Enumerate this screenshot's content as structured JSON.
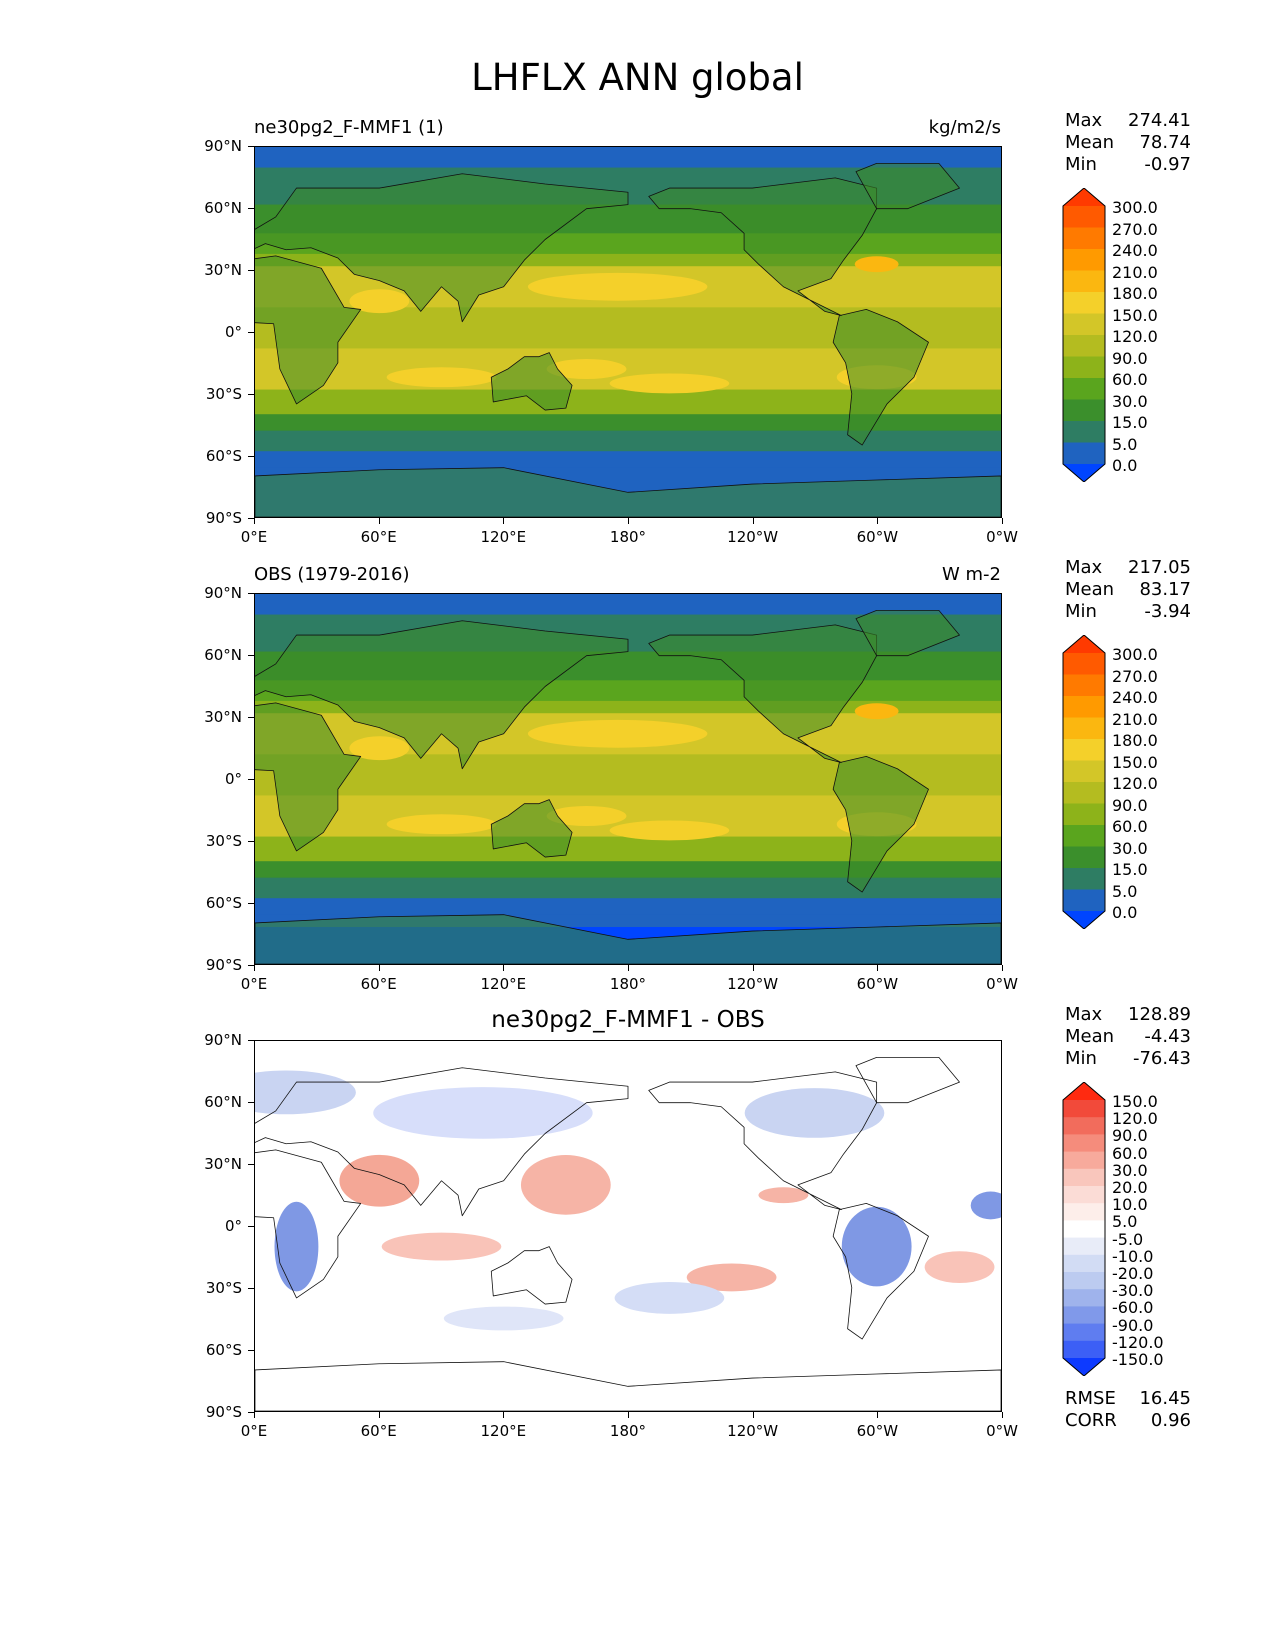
{
  "title": "LHFLX ANN global",
  "axes": {
    "lat_labels": [
      "90°N",
      "60°N",
      "30°N",
      "0°",
      "30°S",
      "60°S",
      "90°S"
    ],
    "lon_labels": [
      "0°E",
      "60°E",
      "120°E",
      "180°",
      "120°W",
      "60°W",
      "0°W"
    ]
  },
  "panels": [
    {
      "title_left": "ne30pg2_F-MMF1 (1)",
      "title_right": "kg/m2/s",
      "title_center": "",
      "stats": [
        {
          "label": "Max",
          "value": "274.41"
        },
        {
          "label": "Mean",
          "value": "78.74"
        },
        {
          "label": "Min",
          "value": "-0.97"
        }
      ],
      "colorbar_labels": [
        "300.0",
        "270.0",
        "240.0",
        "210.0",
        "180.0",
        "150.0",
        "120.0",
        "90.0",
        "60.0",
        "30.0",
        "15.0",
        "5.0",
        "0.0"
      ],
      "colorbar_colors": [
        "#ff3a00",
        "#ff5a00",
        "#ff7a00",
        "#ff9a00",
        "#fbb710",
        "#f4d02a",
        "#d3c628",
        "#b4bc20",
        "#8db31a",
        "#5aa51e",
        "#3b8f2c",
        "#2e7d63",
        "#1f63c0",
        "#0045ff"
      ],
      "extra_stats": []
    },
    {
      "title_left": "OBS (1979-2016)",
      "title_right": "W m-2",
      "title_center": "",
      "stats": [
        {
          "label": "Max",
          "value": "217.05"
        },
        {
          "label": "Mean",
          "value": "83.17"
        },
        {
          "label": "Min",
          "value": "-3.94"
        }
      ],
      "colorbar_labels": [
        "300.0",
        "270.0",
        "240.0",
        "210.0",
        "180.0",
        "150.0",
        "120.0",
        "90.0",
        "60.0",
        "30.0",
        "15.0",
        "5.0",
        "0.0"
      ],
      "colorbar_colors": [
        "#ff3a00",
        "#ff5a00",
        "#ff7a00",
        "#ff9a00",
        "#fbb710",
        "#f4d02a",
        "#d3c628",
        "#b4bc20",
        "#8db31a",
        "#5aa51e",
        "#3b8f2c",
        "#2e7d63",
        "#1f63c0",
        "#0045ff"
      ],
      "extra_stats": []
    },
    {
      "title_left": "",
      "title_right": "",
      "title_center": "ne30pg2_F-MMF1 - OBS",
      "stats": [
        {
          "label": "Max",
          "value": "128.89"
        },
        {
          "label": "Mean",
          "value": "-4.43"
        },
        {
          "label": "Min",
          "value": "-76.43"
        }
      ],
      "colorbar_labels": [
        "150.0",
        "120.0",
        "90.0",
        "60.0",
        "30.0",
        "20.0",
        "10.0",
        "5.0",
        "-5.0",
        "-10.0",
        "-20.0",
        "-30.0",
        "-60.0",
        "-90.0",
        "-120.0",
        "-150.0"
      ],
      "colorbar_colors": [
        "#ff2a10",
        "#f24a3a",
        "#f26c5c",
        "#f58c7c",
        "#f7aa9c",
        "#f9c6bc",
        "#fbdcd6",
        "#fdeeea",
        "#ffffff",
        "#e8ecf8",
        "#d2dcf4",
        "#bccbf0",
        "#9fb3ec",
        "#8099ea",
        "#5f7df0",
        "#3c5ff6",
        "#0d3aff"
      ],
      "extra_stats": [
        {
          "label": "RMSE",
          "value": "16.45"
        },
        {
          "label": "CORR",
          "value": "0.96"
        }
      ]
    }
  ]
}
